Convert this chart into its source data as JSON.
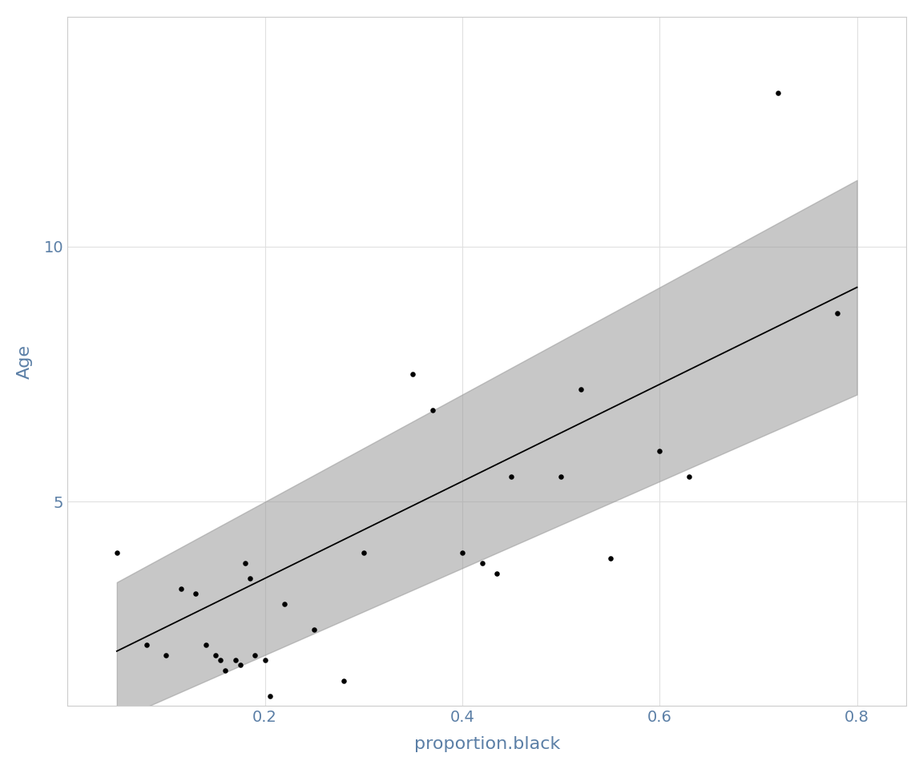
{
  "points_x": [
    0.05,
    0.08,
    0.1,
    0.115,
    0.13,
    0.14,
    0.15,
    0.155,
    0.16,
    0.17,
    0.175,
    0.18,
    0.185,
    0.19,
    0.2,
    0.205,
    0.22,
    0.25,
    0.28,
    0.3,
    0.35,
    0.37,
    0.4,
    0.42,
    0.435,
    0.45,
    0.5,
    0.52,
    0.55,
    0.6,
    0.63,
    0.72,
    0.78
  ],
  "points_y": [
    4.0,
    2.2,
    2.0,
    3.3,
    3.2,
    2.2,
    2.0,
    1.9,
    1.7,
    1.9,
    1.8,
    3.8,
    3.5,
    2.0,
    1.9,
    1.2,
    3.0,
    2.5,
    1.5,
    4.0,
    7.5,
    6.8,
    4.0,
    3.8,
    3.6,
    5.5,
    5.5,
    7.2,
    3.9,
    6.0,
    5.5,
    13.0,
    8.7
  ],
  "line_x_start": 0.05,
  "line_x_end": 0.8,
  "line_slope": 9.5,
  "line_intercept": 1.6,
  "band_lower_slope": 8.5,
  "band_lower_intercept": 0.3,
  "band_upper_slope": 10.5,
  "band_upper_intercept": 2.9,
  "xlabel": "proportion.black",
  "ylabel": "Age",
  "xlim": [
    0.0,
    0.85
  ],
  "ylim": [
    1.0,
    14.5
  ],
  "xticks": [
    0.2,
    0.4,
    0.6,
    0.8
  ],
  "yticks": [
    5,
    10
  ],
  "background_color": "#ffffff",
  "panel_background": "#ffffff",
  "grid_color": "#e0e0e0",
  "band_color": "#999999",
  "band_alpha": 0.55,
  "line_color": "#000000",
  "line_width": 1.3,
  "point_color": "#000000",
  "point_size": 22,
  "axis_label_color": "#5b7fa6",
  "tick_label_color": "#5b7fa6",
  "xlabel_fontsize": 16,
  "ylabel_fontsize": 16,
  "tick_fontsize": 14
}
